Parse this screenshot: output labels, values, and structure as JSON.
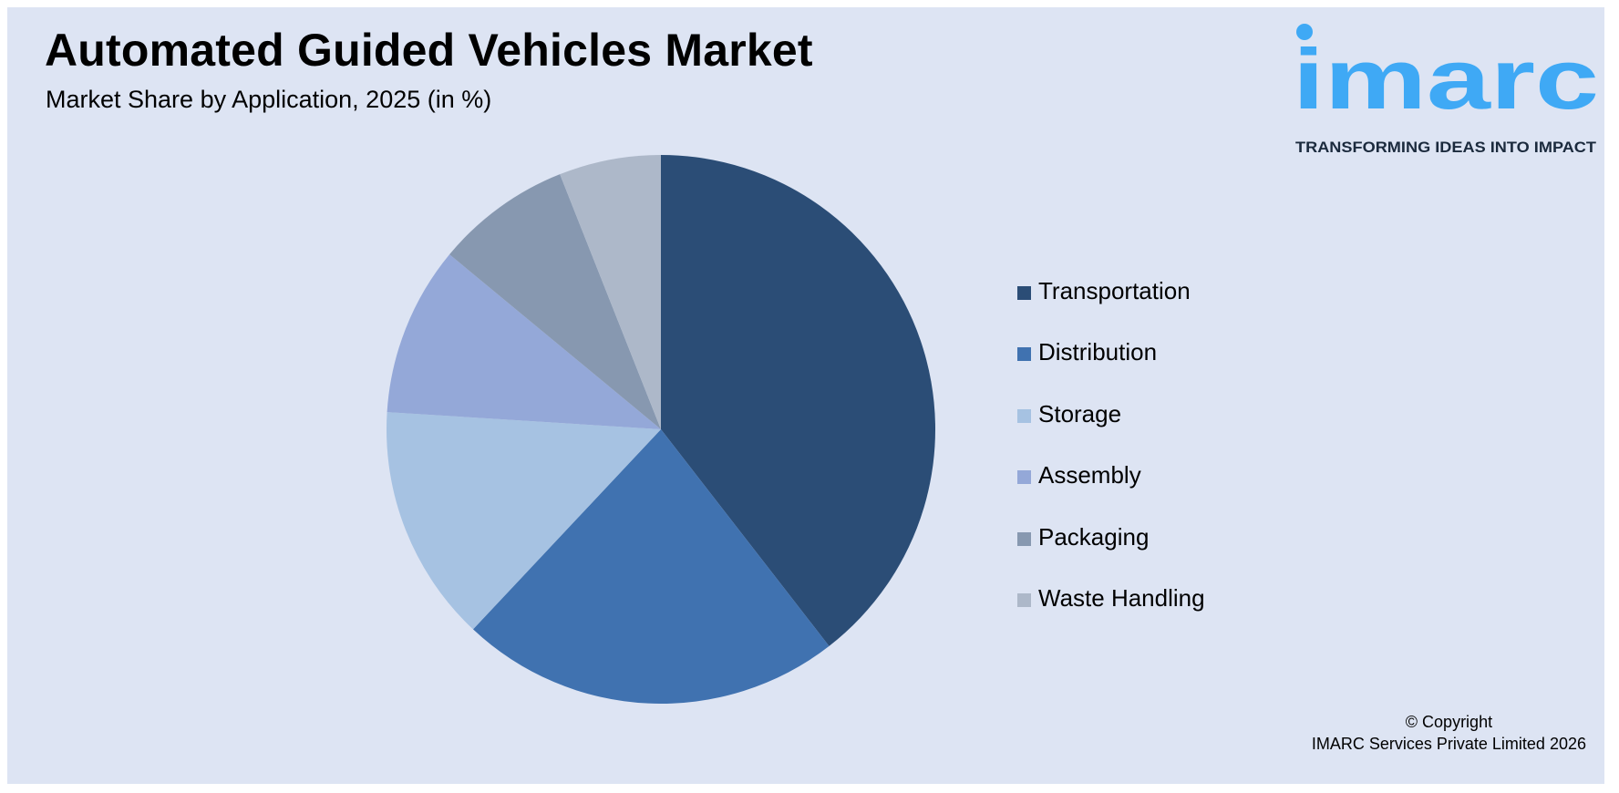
{
  "title": "Automated Guided Vehicles Market",
  "subtitle": "Market Share by Application, 2025 (in %)",
  "logo": {
    "text": "imarc",
    "tagline": "TRANSFORMING IDEAS INTO IMPACT",
    "color": "#3fa9f5"
  },
  "copyright": {
    "line1": "© Copyright",
    "line2": "IMARC Services Private Limited 2026"
  },
  "background_color": "#dde4f3",
  "chart_data": {
    "type": "pie",
    "title": "Automated Guided Vehicles Market",
    "subtitle": "Market Share by Application, 2025 (in %)",
    "legend_position": "right",
    "categories": [
      "Transportation",
      "Distribution",
      "Storage",
      "Assembly",
      "Packaging",
      "Waste Handling"
    ],
    "values": [
      39.5,
      22.5,
      14,
      10,
      8,
      6
    ],
    "colors": [
      "#2b4d76",
      "#4072b0",
      "#a6c2e2",
      "#94a8d8",
      "#8798b0",
      "#adb8c9"
    ]
  }
}
